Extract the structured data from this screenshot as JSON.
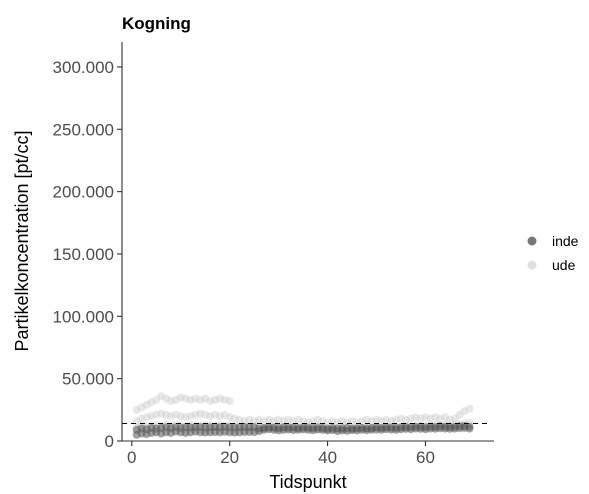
{
  "chart_data": {
    "type": "scatter",
    "title": "Kogning",
    "xlabel": "Tidspunkt",
    "ylabel": "Partikelkoncentration [pt/cc]",
    "xlim": [
      -2,
      74
    ],
    "ylim": [
      0,
      320000
    ],
    "xticks": [
      0,
      20,
      40,
      60
    ],
    "xtick_labels": [
      "0",
      "20",
      "40",
      "60"
    ],
    "yticks": [
      0,
      50000,
      100000,
      150000,
      200000,
      250000,
      300000
    ],
    "ytick_labels": [
      "0",
      "50.000",
      "100.000",
      "150.000",
      "200.000",
      "250.000",
      "300.000"
    ],
    "reference_line": {
      "y": 14000,
      "style": "dashed"
    },
    "grid": false,
    "legend_position": "right",
    "series": [
      {
        "name": "inde",
        "color": "#555555",
        "x": [
          1,
          2,
          3,
          4,
          5,
          6,
          7,
          8,
          9,
          10,
          11,
          12,
          13,
          14,
          15,
          16,
          17,
          18,
          19,
          20,
          21,
          22,
          23,
          24,
          25,
          26,
          27,
          28,
          29,
          30,
          31,
          32,
          33,
          34,
          35,
          36,
          37,
          38,
          39,
          40,
          41,
          42,
          43,
          44,
          45,
          46,
          47,
          48,
          49,
          50,
          51,
          52,
          53,
          54,
          55,
          56,
          57,
          58,
          59,
          60,
          61,
          62,
          63,
          64,
          65,
          66,
          67,
          68,
          69,
          1,
          2,
          3,
          4,
          5,
          6,
          7,
          8,
          9,
          10,
          11,
          12,
          13,
          14,
          15,
          16,
          17,
          18,
          19,
          20,
          21,
          22,
          23,
          24,
          25,
          26,
          27,
          28,
          29,
          30,
          31,
          32,
          33,
          34,
          35,
          36,
          37,
          38,
          39,
          40,
          41,
          42,
          43,
          44,
          45,
          46,
          47,
          48,
          49,
          50,
          51,
          52,
          53,
          54,
          55,
          56,
          57,
          58,
          59,
          60,
          61,
          62,
          63,
          64,
          65,
          66,
          67,
          68,
          69
        ],
        "y": [
          5000,
          6000,
          5500,
          6500,
          7000,
          6000,
          7000,
          6500,
          7500,
          7000,
          6500,
          7000,
          7500,
          7000,
          6800,
          7000,
          7200,
          7000,
          7400,
          7000,
          6800,
          7000,
          7200,
          7300,
          7100,
          8000,
          9000,
          9500,
          9000,
          8500,
          9000,
          9200,
          8800,
          9000,
          9500,
          9000,
          8700,
          9200,
          9000,
          8500,
          8800,
          8000,
          8500,
          8200,
          8800,
          8500,
          9000,
          8700,
          9000,
          9200,
          9000,
          9500,
          9200,
          9000,
          9500,
          9800,
          9500,
          10000,
          9800,
          9500,
          10000,
          9800,
          10200,
          10000,
          9800,
          10000,
          10200,
          10500,
          10000,
          9000,
          10000,
          9500,
          10500,
          10000,
          10500,
          11000,
          10500,
          11000,
          10500,
          11000,
          10800,
          11000,
          11200,
          10800,
          11000,
          11200,
          11000,
          11400,
          11000,
          10800,
          11000,
          11200,
          11000,
          11100,
          10000,
          10500,
          11000,
          10800,
          10500,
          11000,
          10800,
          11000,
          10500,
          11000,
          10800,
          10500,
          11000,
          10500,
          10000,
          10500,
          10000,
          10200,
          10500,
          10000,
          10200,
          10500,
          10300,
          10500,
          10800,
          10500,
          11000,
          10800,
          10500,
          11000,
          11200,
          11000,
          11500,
          11200,
          11000,
          11500,
          11200,
          11800,
          11500,
          11200,
          11500,
          11800,
          12000,
          11500
        ]
      },
      {
        "name": "ude",
        "color": "#cccccc",
        "x": [
          1,
          2,
          3,
          4,
          5,
          6,
          7,
          8,
          9,
          10,
          11,
          12,
          13,
          14,
          15,
          16,
          17,
          18,
          19,
          20,
          1,
          2,
          3,
          4,
          5,
          6,
          7,
          8,
          9,
          10,
          11,
          12,
          13,
          14,
          15,
          16,
          17,
          18,
          19,
          20,
          21,
          22,
          23,
          24,
          25,
          26,
          27,
          28,
          29,
          30,
          31,
          32,
          33,
          34,
          35,
          36,
          37,
          38,
          39,
          40,
          41,
          42,
          43,
          44,
          45,
          46,
          47,
          48,
          49,
          50,
          51,
          52,
          53,
          54,
          55,
          56,
          57,
          58,
          59,
          60,
          61,
          62,
          63,
          64,
          65,
          66,
          67,
          68,
          69,
          1,
          2,
          3,
          4,
          5,
          6,
          7,
          8,
          9,
          10,
          11,
          12,
          13,
          14,
          15,
          16,
          17,
          18,
          19,
          20,
          21,
          22,
          23,
          24,
          25,
          26,
          27,
          28,
          29,
          30,
          31,
          32,
          33,
          34,
          35,
          36,
          37,
          38,
          39,
          40,
          41,
          42,
          43,
          44,
          45,
          46,
          47,
          48,
          49,
          50,
          51,
          52,
          53,
          54,
          55,
          56,
          57,
          58,
          59,
          60,
          61,
          62,
          63,
          64,
          65,
          66,
          67,
          68,
          69
        ],
        "y": [
          25000,
          27000,
          29000,
          31000,
          33000,
          36000,
          34000,
          32000,
          33000,
          35000,
          34000,
          33000,
          34000,
          33000,
          34000,
          32000,
          33000,
          34000,
          33000,
          32000,
          16000,
          18000,
          19000,
          20000,
          21000,
          22000,
          21000,
          20000,
          21000,
          20000,
          19000,
          20000,
          21000,
          22000,
          21000,
          20000,
          21000,
          20000,
          21000,
          19000,
          18000,
          17000,
          16000,
          17000,
          16000,
          17000,
          16000,
          17000,
          16000,
          17000,
          16000,
          17000,
          16000,
          17000,
          16000,
          15000,
          16000,
          17000,
          16000,
          15000,
          16000,
          15000,
          16000,
          15000,
          16000,
          15000,
          16000,
          17000,
          16000,
          17000,
          16000,
          17000,
          16000,
          17000,
          18000,
          17000,
          18000,
          19000,
          18000,
          19000,
          18000,
          19000,
          18000,
          19000,
          17000,
          18000,
          21000,
          24000,
          26000,
          11000,
          12000,
          11500,
          12000,
          12500,
          12000,
          12500,
          12000,
          12800,
          12500,
          12000,
          12800,
          12500,
          12000,
          12800,
          12500,
          12000,
          12500,
          12000,
          12500,
          12000,
          11500,
          12000,
          11500,
          12000,
          11000,
          10500,
          11000,
          10500,
          10000,
          10500,
          10000,
          10500,
          10000,
          9500,
          10000,
          9500,
          10000,
          9500,
          9000,
          9500,
          10000,
          9500,
          9000,
          9500,
          10000,
          10500,
          10000,
          10500,
          11000,
          10500,
          11000,
          11500,
          11000,
          11500,
          12000,
          11500,
          12000,
          12500,
          12000,
          12500,
          13000,
          12500,
          13000,
          12500,
          13000,
          13500,
          14000,
          14500
        ]
      }
    ]
  }
}
